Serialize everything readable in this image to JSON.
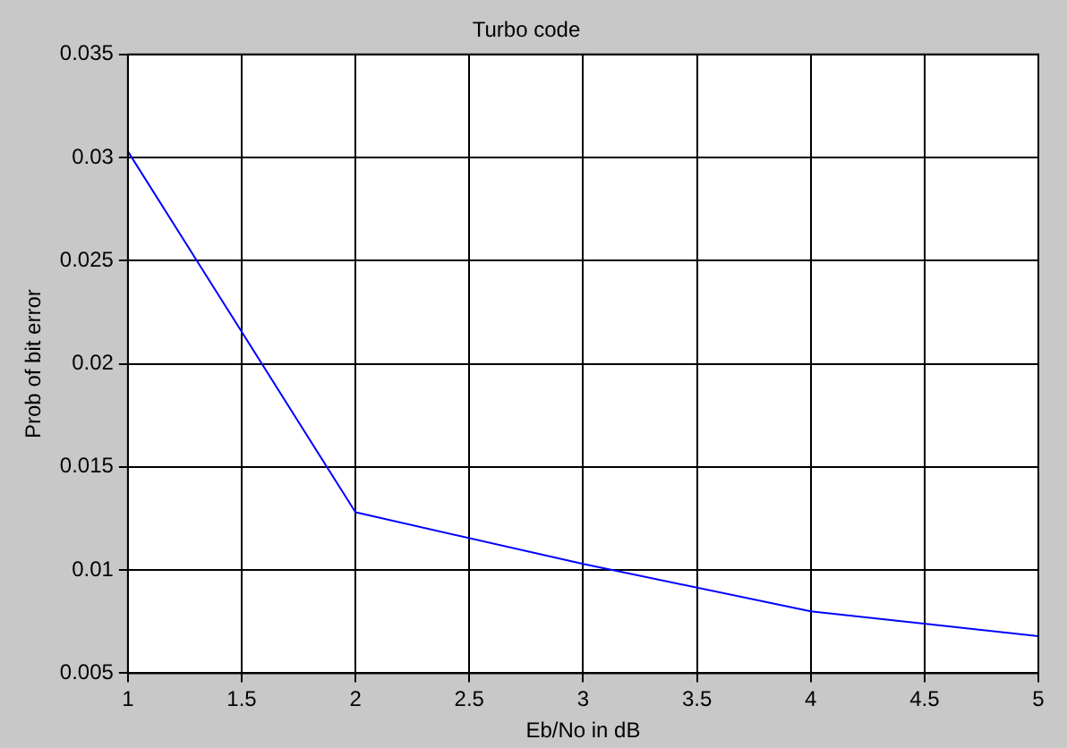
{
  "chart_data": {
    "type": "line",
    "title": "Turbo code",
    "xlabel": "Eb/No in dB",
    "ylabel": "Prob of bit error",
    "x": [
      1,
      2,
      3,
      4,
      5
    ],
    "series": [
      {
        "color": "#0000ff",
        "values": [
          0.0303,
          0.0128,
          0.0103,
          0.008,
          0.0068
        ]
      }
    ],
    "xlim": [
      1,
      5
    ],
    "xticks": [
      1,
      1.5,
      2,
      2.5,
      3,
      3.5,
      4,
      4.5,
      5
    ],
    "ylim": [
      0.005,
      0.035
    ],
    "yticks": [
      0.005,
      0.01,
      0.015,
      0.02,
      0.025,
      0.03,
      0.035
    ],
    "grid": true,
    "legend": false,
    "marker": "none",
    "line_style": "solid"
  }
}
